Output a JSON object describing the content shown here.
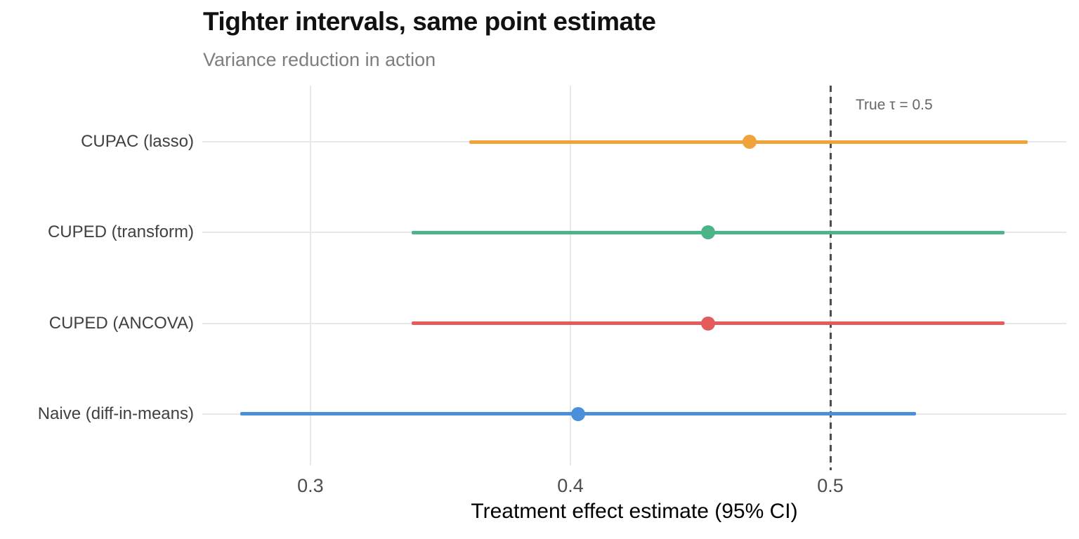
{
  "chart_data": {
    "type": "scatter",
    "subtype": "forest-plot-ci",
    "title": "Tighter intervals, same point estimate",
    "subtitle": "Variance reduction in action",
    "xlabel": "Treatment effect estimate (95% CI)",
    "ylabel": "",
    "xlim": [
      0.2584,
      0.5908
    ],
    "x_ticks": [
      0.3,
      0.4,
      0.5
    ],
    "x_tick_labels": [
      "0.3",
      "0.4",
      "0.5"
    ],
    "grid": true,
    "legend": "none",
    "background": "#ffffff",
    "gridline_color": "#e8e8e8",
    "reference_line": {
      "x": 0.5,
      "label": "True τ = 0.5",
      "style": "dashed",
      "color": "#4d4d4d"
    },
    "rows": [
      {
        "label": "CUPAC (lasso)",
        "estimate": 0.469,
        "ci_low": 0.361,
        "ci_high": 0.576,
        "color": "#F1A33B"
      },
      {
        "label": "CUPED (transform)",
        "estimate": 0.453,
        "ci_low": 0.339,
        "ci_high": 0.567,
        "color": "#4BB488"
      },
      {
        "label": "CUPED (ANCOVA)",
        "estimate": 0.453,
        "ci_low": 0.339,
        "ci_high": 0.567,
        "color": "#E45B5B"
      },
      {
        "label": "Naive (diff-in-means)",
        "estimate": 0.403,
        "ci_low": 0.273,
        "ci_high": 0.533,
        "color": "#4A8FDB"
      }
    ]
  }
}
